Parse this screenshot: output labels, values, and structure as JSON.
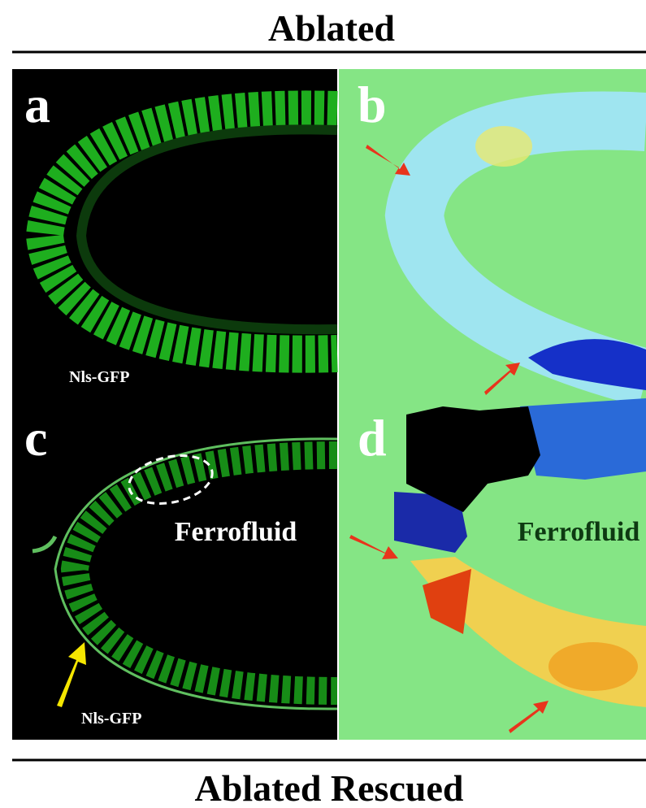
{
  "header": {
    "title": "Ablated"
  },
  "panels": [
    {
      "label": "a",
      "caption": "Nls-GFP"
    },
    {
      "label": "b"
    },
    {
      "label": "c",
      "caption": "Nls-GFP",
      "annotation": "Ferrofluid"
    },
    {
      "label": "d",
      "annotation": "Ferrofluid"
    }
  ],
  "footer": {
    "title": "Ablated Rescued"
  }
}
